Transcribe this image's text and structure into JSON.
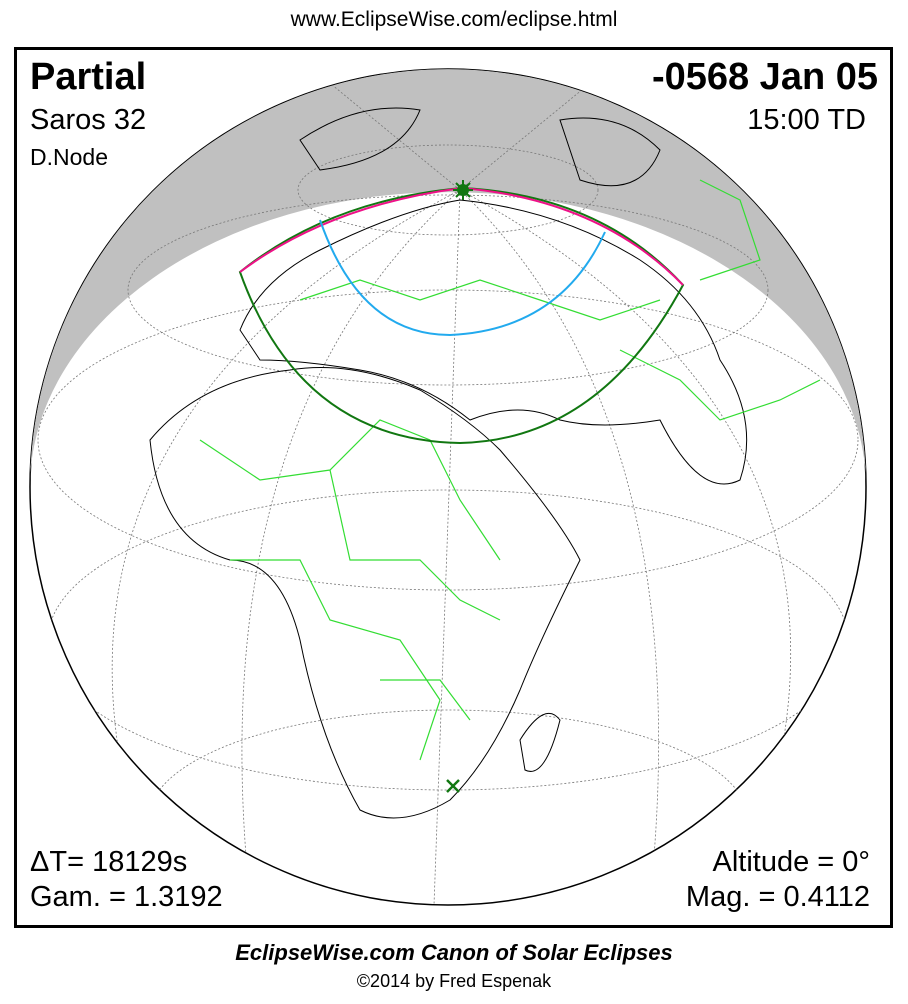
{
  "header": {
    "url": "www.EclipseWise.com/eclipse.html"
  },
  "eclipse": {
    "type": "Partial",
    "saros": "Saros  32",
    "node": "D.Node",
    "date": "-0568 Jan 05",
    "time": "15:00 TD",
    "delta_t": "ΔT=  18129s",
    "gamma": "Gam. = 1.3192",
    "altitude": "Altitude =  0°",
    "magnitude": "Mag. = 0.4112"
  },
  "footer": {
    "canon": "EclipseWise.com Canon of Solar Eclipses",
    "copyright": "©2014 by Fred Espenak"
  },
  "map": {
    "projection": "orthographic",
    "night_color": "#c0c0c0",
    "border_color": "#33dd33",
    "eclipse_limit_color": "#117711",
    "max_eclipse_sunrise_color": "#ee1188",
    "mid_curve_color": "#22aaee",
    "markers": [
      "greatest-eclipse-star",
      "x-mark"
    ]
  }
}
